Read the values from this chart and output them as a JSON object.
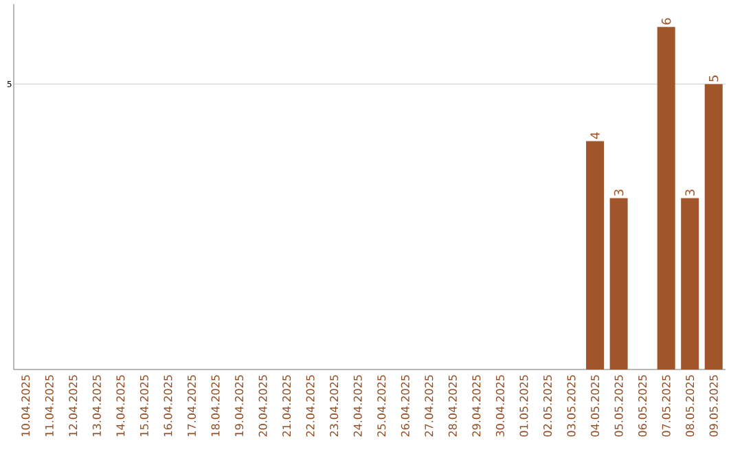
{
  "chart_data": {
    "type": "bar",
    "data_labels": true,
    "ylim": [
      0,
      6.4
    ],
    "categories": [
      "10.04.2025",
      "11.04.2025",
      "12.04.2025",
      "13.04.2025",
      "14.04.2025",
      "15.04.2025",
      "16.04.2025",
      "17.04.2025",
      "18.04.2025",
      "19.04.2025",
      "20.04.2025",
      "21.04.2025",
      "22.04.2025",
      "23.04.2025",
      "24.04.2025",
      "25.04.2025",
      "26.04.2025",
      "27.04.2025",
      "28.04.2025",
      "29.04.2025",
      "30.04.2025",
      "01.05.2025",
      "02.05.2025",
      "03.05.2025",
      "04.05.2025",
      "05.05.2025",
      "06.05.2025",
      "07.05.2025",
      "08.05.2025",
      "09.05.2025"
    ],
    "values": [
      null,
      null,
      null,
      null,
      null,
      null,
      null,
      null,
      null,
      null,
      null,
      null,
      null,
      null,
      null,
      null,
      null,
      null,
      null,
      null,
      null,
      null,
      null,
      null,
      4,
      3,
      null,
      6,
      3,
      5
    ],
    "color": "#a0562a",
    "ref_lines": [
      {
        "axis": "y",
        "value": 5,
        "label": "5",
        "color": "#bfbfbf"
      }
    ]
  }
}
